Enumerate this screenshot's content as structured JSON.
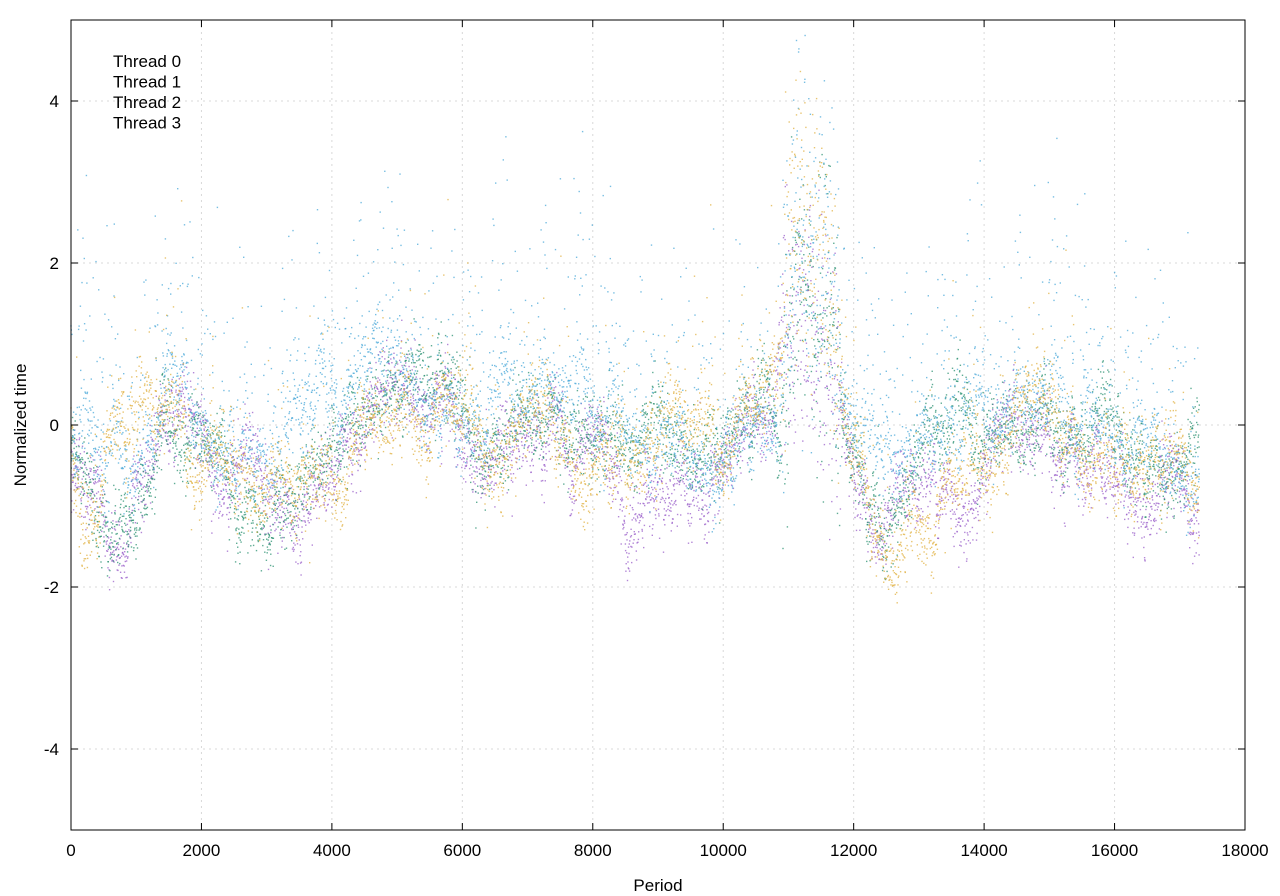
{
  "chart_data": {
    "type": "scatter",
    "title": "",
    "xlabel": "Period",
    "ylabel": "Normalized time",
    "xlim": [
      0,
      18000
    ],
    "ylim": [
      -5,
      5
    ],
    "xticks": [
      0,
      2000,
      4000,
      6000,
      8000,
      10000,
      12000,
      14000,
      16000,
      18000
    ],
    "yticks": [
      -4,
      -2,
      0,
      2,
      4
    ],
    "xtick_labels": [
      "0",
      "2000",
      "4000",
      "6000",
      "8000",
      "10000",
      "12000",
      "14000",
      "16000",
      "18000"
    ],
    "ytick_labels": [
      "-4",
      "-2",
      "0",
      "2",
      "4"
    ],
    "grid": true,
    "legend_position": "top-left",
    "period_max": 17300,
    "series": [
      {
        "name": "Thread 0",
        "color": "#9a5fc9",
        "baseline": [
          [
            0,
            -0.6
          ],
          [
            500,
            -1.0
          ],
          [
            900,
            -1.3
          ],
          [
            1500,
            0.0
          ],
          [
            2200,
            -0.5
          ],
          [
            3000,
            -0.8
          ],
          [
            3500,
            -1.0
          ],
          [
            4100,
            -0.2
          ],
          [
            4800,
            0.4
          ],
          [
            5500,
            0.3
          ],
          [
            6200,
            -0.3
          ],
          [
            6800,
            0.0
          ],
          [
            7300,
            -0.1
          ],
          [
            8000,
            -0.6
          ],
          [
            8500,
            -0.9
          ],
          [
            9000,
            -0.9
          ],
          [
            9600,
            -1.0
          ],
          [
            10300,
            -0.2
          ],
          [
            10800,
            0.0
          ],
          [
            11000,
            1.3
          ],
          [
            11500,
            1.2
          ],
          [
            11900,
            0.0
          ],
          [
            12300,
            -1.4
          ],
          [
            12600,
            -1.5
          ],
          [
            13100,
            -0.6
          ],
          [
            13700,
            -0.9
          ],
          [
            14200,
            -0.2
          ],
          [
            14700,
            0.0
          ],
          [
            15300,
            -0.9
          ],
          [
            16000,
            -0.7
          ],
          [
            16600,
            -0.8
          ],
          [
            17300,
            -1.1
          ]
        ]
      },
      {
        "name": "Thread 1",
        "color": "#2a9070",
        "baseline": [
          [
            0,
            -0.5
          ],
          [
            500,
            -0.8
          ],
          [
            900,
            -1.4
          ],
          [
            1500,
            -0.1
          ],
          [
            2200,
            -0.4
          ],
          [
            3100,
            -1.5
          ],
          [
            3600,
            -0.6
          ],
          [
            4300,
            0.2
          ],
          [
            5000,
            0.5
          ],
          [
            5800,
            0.1
          ],
          [
            6300,
            -0.4
          ],
          [
            6800,
            0.2
          ],
          [
            7400,
            0.3
          ],
          [
            8000,
            -0.3
          ],
          [
            8600,
            -0.2
          ],
          [
            9200,
            -0.1
          ],
          [
            9800,
            -0.2
          ],
          [
            10400,
            0.2
          ],
          [
            10900,
            0.1
          ],
          [
            11100,
            1.5
          ],
          [
            11600,
            1.6
          ],
          [
            11900,
            -0.2
          ],
          [
            12200,
            -1.2
          ],
          [
            12600,
            -1.3
          ],
          [
            13100,
            -0.3
          ],
          [
            13700,
            0.0
          ],
          [
            14300,
            0.0
          ],
          [
            14800,
            0.3
          ],
          [
            15400,
            -0.2
          ],
          [
            16000,
            -0.3
          ],
          [
            16700,
            -0.5
          ],
          [
            17300,
            0.0
          ]
        ]
      },
      {
        "name": "Thread 2",
        "color": "#4aa8d8",
        "baseline": [
          [
            0,
            -0.4
          ],
          [
            500,
            -0.2
          ],
          [
            900,
            -0.8
          ],
          [
            1500,
            0.6
          ],
          [
            2200,
            -0.2
          ],
          [
            3000,
            -0.5
          ],
          [
            3600,
            0.2
          ],
          [
            4300,
            0.4
          ],
          [
            5000,
            0.6
          ],
          [
            5600,
            0.3
          ],
          [
            6200,
            0.0
          ],
          [
            6800,
            0.4
          ],
          [
            7400,
            0.3
          ],
          [
            8000,
            0.2
          ],
          [
            8600,
            -0.2
          ],
          [
            9300,
            -0.3
          ],
          [
            9900,
            -0.5
          ],
          [
            10500,
            0.0
          ],
          [
            10900,
            0.1
          ],
          [
            11100,
            1.8
          ],
          [
            11600,
            1.5
          ],
          [
            11900,
            0.0
          ],
          [
            12300,
            -0.3
          ],
          [
            12800,
            -0.2
          ],
          [
            13300,
            0.0
          ],
          [
            13900,
            0.0
          ],
          [
            14500,
            0.2
          ],
          [
            15000,
            0.2
          ],
          [
            15600,
            -0.1
          ],
          [
            16200,
            -0.2
          ],
          [
            16800,
            -0.4
          ],
          [
            17300,
            -0.6
          ]
        ]
      },
      {
        "name": "Thread 3",
        "color": "#e0b040",
        "baseline": [
          [
            0,
            -0.3
          ],
          [
            300,
            -1.5
          ],
          [
            600,
            0.0
          ],
          [
            900,
            -0.3
          ],
          [
            1500,
            0.2
          ],
          [
            2200,
            -0.4
          ],
          [
            2900,
            -0.7
          ],
          [
            3500,
            -0.4
          ],
          [
            4100,
            -0.8
          ],
          [
            4600,
            0.1
          ],
          [
            5200,
            0.3
          ],
          [
            5800,
            0.1
          ],
          [
            6400,
            -0.5
          ],
          [
            6800,
            -0.2
          ],
          [
            7300,
            0.4
          ],
          [
            7800,
            -0.5
          ],
          [
            8300,
            -0.3
          ],
          [
            8800,
            -0.5
          ],
          [
            9400,
            -0.1
          ],
          [
            9900,
            0.0
          ],
          [
            10500,
            0.2
          ],
          [
            10900,
            1.0
          ],
          [
            11100,
            3.0
          ],
          [
            11500,
            2.2
          ],
          [
            11900,
            0.0
          ],
          [
            12200,
            -1.2
          ],
          [
            12600,
            -1.6
          ],
          [
            13000,
            -1.0
          ],
          [
            13500,
            -0.9
          ],
          [
            14000,
            -0.8
          ],
          [
            14500,
            0.2
          ],
          [
            15000,
            0.4
          ],
          [
            15500,
            -0.2
          ],
          [
            16000,
            -0.4
          ],
          [
            16600,
            -0.6
          ],
          [
            17300,
            -0.9
          ]
        ]
      }
    ]
  }
}
